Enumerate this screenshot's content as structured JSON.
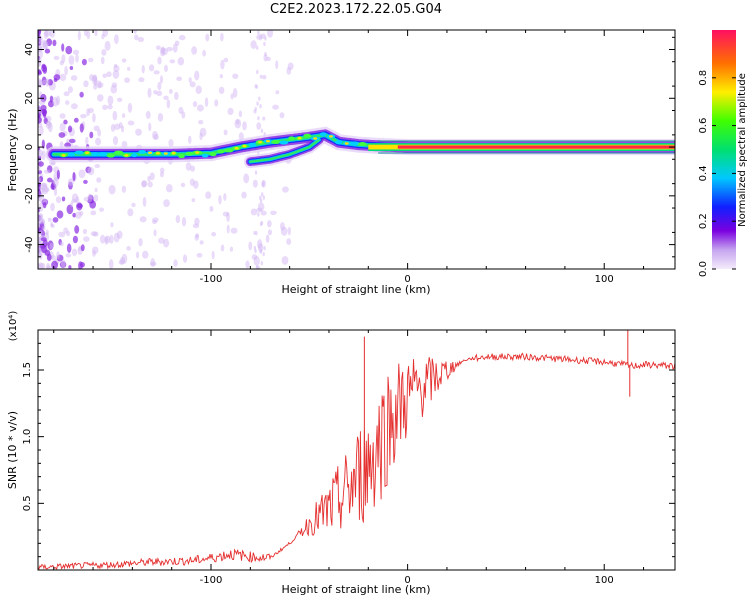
{
  "title": "C2E2.2023.172.22.05.G04",
  "chart_data": [
    {
      "type": "heatmap",
      "xlabel": "Height of straight line (km)",
      "ylabel": "Frequency (Hz)",
      "xlim": [
        -188,
        136
      ],
      "ylim": [
        -50,
        48
      ],
      "x_ticks": [
        -100,
        0,
        100
      ],
      "x_tick_labels": [
        "-100",
        "0",
        "100"
      ],
      "y_ticks": [
        -40,
        -20,
        0,
        20,
        40
      ],
      "y_tick_labels": [
        "-40",
        "-20",
        "0",
        "20",
        "40"
      ],
      "colorbar": {
        "label": "Normalized spectral amplitude",
        "range": [
          0,
          1
        ],
        "ticks": [
          0.0,
          0.2,
          0.4,
          0.6,
          0.8
        ],
        "tick_labels": [
          "0.0",
          "0.2",
          "0.4",
          "0.6",
          "0.8"
        ]
      },
      "ridge": {
        "x": [
          -180,
          -160,
          -140,
          -120,
          -100,
          -85,
          -70,
          -60,
          -50,
          -42,
          -35,
          -25,
          -15,
          0,
          20,
          60,
          110,
          136
        ],
        "y": [
          -3,
          -3,
          -3,
          -3,
          -2.5,
          0,
          2,
          3,
          4,
          5,
          2,
          1,
          0.5,
          0,
          0,
          0,
          0,
          0
        ]
      },
      "secondary_ridge": {
        "x": [
          -80,
          -70,
          -60,
          -50,
          -45
        ],
        "y": [
          -6,
          -5,
          -3,
          0,
          3
        ]
      }
    },
    {
      "type": "line",
      "xlabel": "Height of straight line (km)",
      "ylabel": "SNR (10 * v/v)",
      "y_multiplier": "(x10⁴)",
      "xlim": [
        -188,
        136
      ],
      "ylim": [
        0,
        18000
      ],
      "x_ticks": [
        -100,
        0,
        100
      ],
      "x_tick_labels": [
        "-100",
        "0",
        "100"
      ],
      "y_ticks": [
        5000,
        10000,
        15000
      ],
      "y_tick_labels": [
        "0.5",
        "1.0",
        "1.5"
      ],
      "series": [
        {
          "color": "#e53030",
          "x": [
            -188,
            -170,
            -150,
            -130,
            -110,
            -100,
            -90,
            -80,
            -70,
            -60,
            -50,
            -40,
            -30,
            -25,
            -20,
            -15,
            -10,
            -5,
            0,
            5,
            10,
            20,
            30,
            40,
            60,
            80,
            100,
            110,
            115,
            120,
            136
          ],
          "y": [
            200,
            300,
            400,
            600,
            700,
            900,
            1200,
            1000,
            900,
            2000,
            3500,
            4500,
            6000,
            7000,
            8000,
            9500,
            11000,
            12000,
            13000,
            13500,
            14000,
            15000,
            15800,
            16000,
            16000,
            15800,
            15600,
            15400,
            15300,
            15400,
            15300
          ]
        }
      ],
      "spikes": [
        {
          "x": -22,
          "y": 17500
        },
        {
          "x": 112,
          "y": 18000
        },
        {
          "x": 113,
          "y": 13000
        }
      ]
    }
  ]
}
